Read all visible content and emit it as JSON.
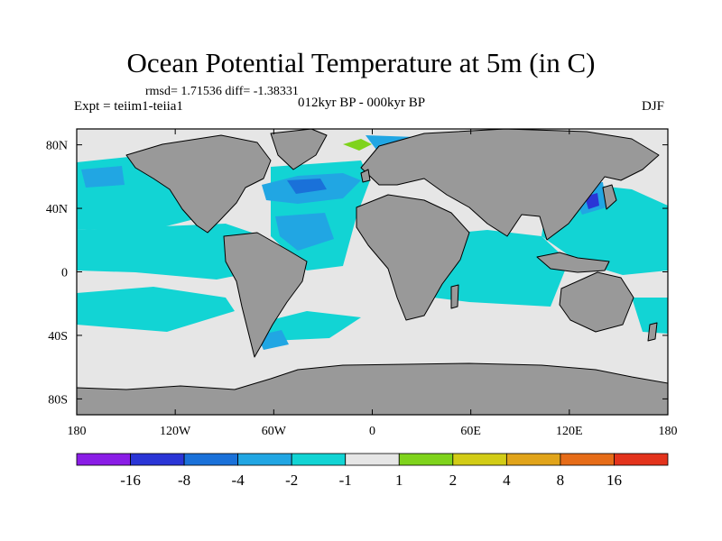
{
  "header": {
    "title": "Ocean Potential Temperature at 5m (in C)",
    "stats": "rmsd= 1.71536 diff= -1.38331",
    "experiment": "Expt = teiim1-teiia1",
    "period": "012kyr BP - 000kyr BP",
    "season": "DJF"
  },
  "chart_data": {
    "type": "heatmap",
    "title": "Ocean Potential Temperature at 5m (in C)",
    "subtitle": "012kyr BP - 000kyr BP",
    "xlabel": "",
    "ylabel": "",
    "projection": "cylindrical equidistant world map",
    "xlim": [
      -180,
      180
    ],
    "ylim": [
      -90,
      90
    ],
    "x_ticks": [
      {
        "value": -180,
        "label": "180"
      },
      {
        "value": -120,
        "label": "120W"
      },
      {
        "value": -60,
        "label": "60W"
      },
      {
        "value": 0,
        "label": "0"
      },
      {
        "value": 60,
        "label": "60E"
      },
      {
        "value": 120,
        "label": "120E"
      },
      {
        "value": 180,
        "label": "180"
      }
    ],
    "y_ticks": [
      {
        "value": 80,
        "label": "80N"
      },
      {
        "value": 40,
        "label": "40N"
      },
      {
        "value": 0,
        "label": "0"
      },
      {
        "value": -40,
        "label": "40S"
      },
      {
        "value": -80,
        "label": "80S"
      }
    ],
    "colorbar": {
      "levels": [
        "-16",
        "-8",
        "-4",
        "-2",
        "-1",
        "1",
        "2",
        "4",
        "8",
        "16"
      ],
      "colors": [
        "#8a1de6",
        "#2a35d6",
        "#1a71d9",
        "#21a6e3",
        "#12d4d4",
        "#e6e6e6",
        "#7fd31c",
        "#d2cc16",
        "#e1a41a",
        "#e66c18",
        "#e3331c"
      ]
    },
    "land_color": "#999999"
  }
}
